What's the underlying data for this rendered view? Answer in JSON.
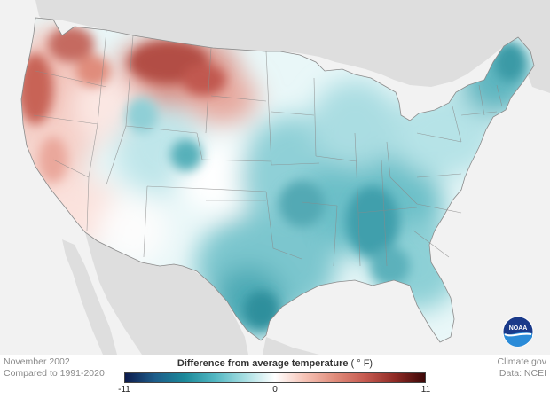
{
  "caption": {
    "date": "November 2002",
    "baseline": "Compared to 1991-2020"
  },
  "credits": {
    "source": "Climate.gov",
    "data": "Data: NCEI"
  },
  "legend": {
    "title": "Difference from average temperature",
    "unit": "( ° F)",
    "min_label": "-11",
    "mid_label": "0",
    "max_label": "11",
    "range": [
      -11,
      11
    ],
    "color_stops": [
      "#0d1b4d",
      "#1d5d8a",
      "#1c8a9a",
      "#52b7c2",
      "#a8dfe3",
      "#ffffff",
      "#f6c3b6",
      "#e08c7b",
      "#c65a50",
      "#8f2a25",
      "#3d0808"
    ]
  },
  "logo": {
    "text": "NOAA"
  },
  "colors": {
    "background": "#f2f2f2",
    "non_us_land": "#dedede",
    "border": "#8a8a8a",
    "water": "#f2f2f2"
  }
}
